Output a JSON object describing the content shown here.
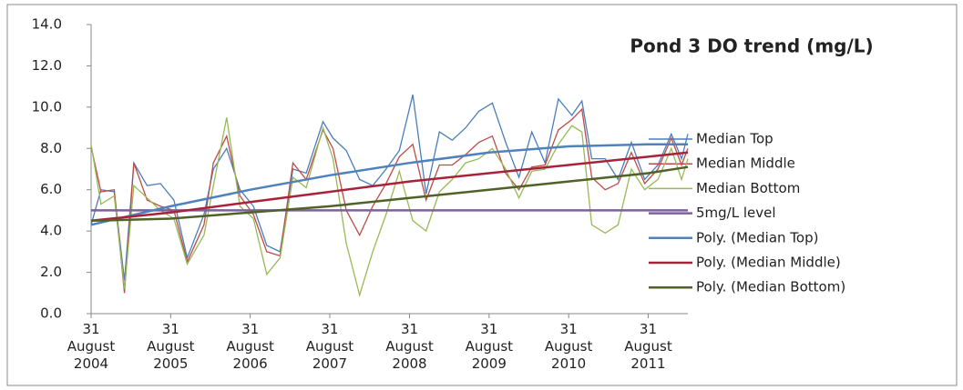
{
  "chart_data": {
    "type": "line",
    "title": "Pond 3 DO trend (mg/L)",
    "x": [
      "2004-08-31",
      "2004-10-15",
      "2004-12-15",
      "2005-01-31",
      "2005-03-15",
      "2005-05-15",
      "2005-07-15",
      "2005-09-15",
      "2005-11-15",
      "2006-01-31",
      "2006-03-15",
      "2006-05-15",
      "2006-07-15",
      "2006-09-15",
      "2006-11-15",
      "2007-01-15",
      "2007-03-15",
      "2007-05-15",
      "2007-07-31",
      "2007-09-15",
      "2007-11-15",
      "2008-01-15",
      "2008-03-15",
      "2008-05-15",
      "2008-07-15",
      "2008-09-15",
      "2008-11-15",
      "2009-01-15",
      "2009-03-15",
      "2009-05-15",
      "2009-07-15",
      "2009-09-15",
      "2009-11-15",
      "2010-01-15",
      "2010-03-15",
      "2010-05-15",
      "2010-07-15",
      "2010-09-15",
      "2010-10-31",
      "2010-12-15",
      "2011-02-15",
      "2011-04-15",
      "2011-06-15",
      "2011-08-15",
      "2011-10-15",
      "2011-12-15",
      "2012-01-31",
      "2012-02-29"
    ],
    "series": [
      {
        "name": "Median Top",
        "color": "#4a7ebb",
        "values": [
          4.3,
          6.0,
          5.9,
          1.6,
          7.3,
          6.2,
          6.3,
          5.5,
          2.7,
          4.8,
          7.0,
          8.0,
          6.0,
          5.2,
          3.3,
          3.0,
          7.0,
          6.8,
          9.3,
          8.5,
          7.9,
          6.5,
          6.2,
          7.0,
          7.9,
          10.6,
          5.8,
          8.8,
          8.4,
          9.0,
          9.8,
          10.2,
          8.3,
          6.6,
          8.8,
          7.3,
          10.4,
          9.6,
          10.3,
          7.5,
          7.5,
          6.5,
          8.3,
          6.5,
          7.2,
          8.7,
          7.5,
          8.7
        ]
      },
      {
        "name": "Median Middle",
        "color": "#be4b48",
        "values": [
          8.1,
          5.9,
          6.0,
          1.0,
          7.3,
          5.5,
          5.2,
          5.0,
          2.5,
          4.3,
          7.3,
          8.6,
          5.7,
          4.8,
          3.0,
          2.8,
          7.3,
          6.5,
          8.9,
          8.0,
          5.0,
          3.8,
          5.2,
          6.3,
          7.6,
          8.2,
          5.5,
          7.2,
          7.2,
          7.7,
          8.3,
          8.6,
          6.8,
          6.0,
          7.1,
          7.2,
          8.9,
          9.4,
          9.9,
          6.6,
          6.0,
          6.3,
          7.8,
          6.3,
          7.0,
          8.5,
          7.2,
          8.0
        ]
      },
      {
        "name": "Median Bottom",
        "color": "#98b954",
        "values": [
          8.2,
          5.3,
          5.7,
          1.2,
          6.2,
          5.6,
          5.0,
          4.6,
          2.4,
          3.8,
          6.2,
          9.5,
          5.2,
          4.6,
          1.9,
          2.7,
          6.6,
          6.1,
          9.0,
          7.5,
          3.4,
          0.9,
          3.0,
          4.8,
          6.9,
          4.5,
          4.0,
          5.9,
          6.5,
          7.3,
          7.5,
          8.0,
          7.0,
          5.6,
          6.9,
          7.0,
          8.2,
          9.1,
          8.8,
          4.3,
          3.9,
          4.3,
          7.0,
          6.0,
          6.5,
          8.0,
          6.5,
          7.5
        ]
      },
      {
        "name": "5mg/L level",
        "color": "#7d60a0",
        "x": [
          "2004-08-31",
          "2012-02-29"
        ],
        "values": [
          5,
          5
        ]
      },
      {
        "name": "Poly. (Median Top)",
        "color": "#4f81bd",
        "x": [
          "2004-08-31",
          "2005-08-31",
          "2006-08-31",
          "2007-08-31",
          "2008-08-31",
          "2009-08-31",
          "2010-08-31",
          "2011-08-31",
          "2012-02-29"
        ],
        "values": [
          4.3,
          5.2,
          6.0,
          6.7,
          7.3,
          7.8,
          8.1,
          8.2,
          8.2
        ]
      },
      {
        "name": "Poly. (Median Middle)",
        "color": "#a8233a",
        "x": [
          "2004-08-31",
          "2005-08-31",
          "2006-08-31",
          "2007-08-31",
          "2008-08-31",
          "2009-08-31",
          "2010-08-31",
          "2011-08-31",
          "2012-02-29"
        ],
        "values": [
          4.5,
          4.9,
          5.4,
          5.9,
          6.4,
          6.8,
          7.2,
          7.6,
          7.8
        ]
      },
      {
        "name": "Poly. (Median Bottom)",
        "color": "#4f6228",
        "x": [
          "2004-08-31",
          "2005-08-31",
          "2006-08-31",
          "2007-08-31",
          "2008-08-31",
          "2009-08-31",
          "2010-08-31",
          "2011-08-31",
          "2012-02-29"
        ],
        "values": [
          4.5,
          4.6,
          4.9,
          5.2,
          5.6,
          6.0,
          6.4,
          6.8,
          7.1
        ]
      }
    ],
    "xlim": [
      "2004-08-31",
      "2012-02-29"
    ],
    "xticks": [
      {
        "value": "2004-08-31",
        "label": "31\nAugust\n2004"
      },
      {
        "value": "2005-08-31",
        "label": "31\nAugust\n2005"
      },
      {
        "value": "2006-08-31",
        "label": "31\nAugust\n2006"
      },
      {
        "value": "2007-08-31",
        "label": "31\nAugust\n2007"
      },
      {
        "value": "2008-08-31",
        "label": "31\nAugust\n2008"
      },
      {
        "value": "2009-08-31",
        "label": "31\nAugust\n2009"
      },
      {
        "value": "2010-08-31",
        "label": "31\nAugust\n2010"
      },
      {
        "value": "2011-08-31",
        "label": "31\nAugust\n2011"
      }
    ],
    "ylim": [
      0,
      14
    ],
    "yticks": [
      {
        "value": 0,
        "label": "0.0"
      },
      {
        "value": 2,
        "label": "2.0"
      },
      {
        "value": 4,
        "label": "4.0"
      },
      {
        "value": 6,
        "label": "6.0"
      },
      {
        "value": 8,
        "label": "8.0"
      },
      {
        "value": 10,
        "label": "10.0"
      },
      {
        "value": 12,
        "label": "12.0"
      },
      {
        "value": 14,
        "label": "14.0"
      }
    ],
    "legend": "right"
  }
}
